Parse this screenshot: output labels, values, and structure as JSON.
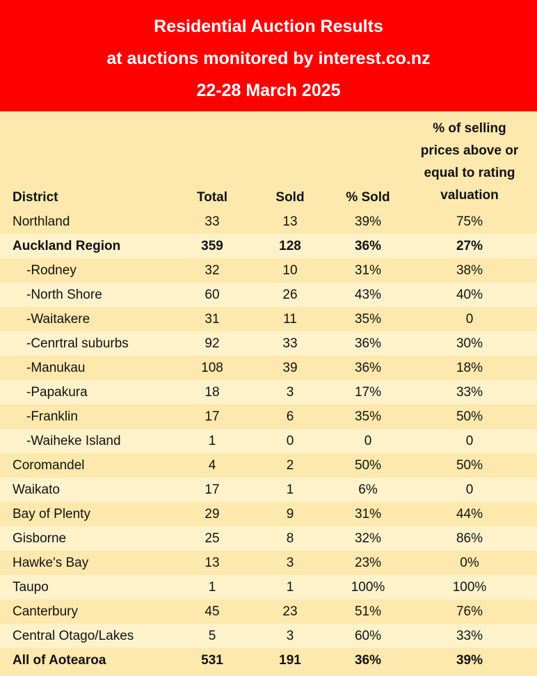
{
  "title": {
    "line1": "Residential Auction Results",
    "line2": "at auctions monitored by interest.co.nz",
    "line3": "22-28 March 2025"
  },
  "colors": {
    "banner": "#ff0000",
    "row_light": "#fef2cb",
    "row_tan": "#fde9ad"
  },
  "table": {
    "headers": {
      "district": "District",
      "total": "Total",
      "sold": "Sold",
      "pct_sold": "% Sold",
      "rating_line1": "% of selling",
      "rating_line2": "prices above or",
      "rating_line3": "equal to rating",
      "rating_line4": "valuation"
    },
    "rows": [
      {
        "district": "Northland",
        "total": "33",
        "sold": "13",
        "pct_sold": "39%",
        "rating": "75%",
        "bold": false,
        "indent": false
      },
      {
        "district": "Auckland Region",
        "total": "359",
        "sold": "128",
        "pct_sold": "36%",
        "rating": "27%",
        "bold": true,
        "indent": false
      },
      {
        "district": "-Rodney",
        "total": "32",
        "sold": "10",
        "pct_sold": "31%",
        "rating": "38%",
        "bold": false,
        "indent": true
      },
      {
        "district": "-North Shore",
        "total": "60",
        "sold": "26",
        "pct_sold": "43%",
        "rating": "40%",
        "bold": false,
        "indent": true
      },
      {
        "district": "-Waitakere",
        "total": "31",
        "sold": "11",
        "pct_sold": "35%",
        "rating": "0",
        "bold": false,
        "indent": true
      },
      {
        "district": "-Cenrtral suburbs",
        "total": "92",
        "sold": "33",
        "pct_sold": "36%",
        "rating": "30%",
        "bold": false,
        "indent": true
      },
      {
        "district": "-Manukau",
        "total": "108",
        "sold": "39",
        "pct_sold": "36%",
        "rating": "18%",
        "bold": false,
        "indent": true
      },
      {
        "district": "-Papakura",
        "total": "18",
        "sold": "3",
        "pct_sold": "17%",
        "rating": "33%",
        "bold": false,
        "indent": true
      },
      {
        "district": "-Franklin",
        "total": "17",
        "sold": "6",
        "pct_sold": "35%",
        "rating": "50%",
        "bold": false,
        "indent": true
      },
      {
        "district": "-Waiheke Island",
        "total": "1",
        "sold": "0",
        "pct_sold": "0",
        "rating": "0",
        "bold": false,
        "indent": true
      },
      {
        "district": "Coromandel",
        "total": "4",
        "sold": "2",
        "pct_sold": "50%",
        "rating": "50%",
        "bold": false,
        "indent": false
      },
      {
        "district": "Waikato",
        "total": "17",
        "sold": "1",
        "pct_sold": "6%",
        "rating": "0",
        "bold": false,
        "indent": false
      },
      {
        "district": "Bay of Plenty",
        "total": "29",
        "sold": "9",
        "pct_sold": "31%",
        "rating": "44%",
        "bold": false,
        "indent": false
      },
      {
        "district": "Gisborne",
        "total": "25",
        "sold": "8",
        "pct_sold": "32%",
        "rating": "86%",
        "bold": false,
        "indent": false
      },
      {
        "district": "Hawke's Bay",
        "total": "13",
        "sold": "3",
        "pct_sold": "23%",
        "rating": "0%",
        "bold": false,
        "indent": false
      },
      {
        "district": "Taupo",
        "total": "1",
        "sold": "1",
        "pct_sold": "100%",
        "rating": "100%",
        "bold": false,
        "indent": false
      },
      {
        "district": "Canterbury",
        "total": "45",
        "sold": "23",
        "pct_sold": "51%",
        "rating": "76%",
        "bold": false,
        "indent": false
      },
      {
        "district": "Central Otago/Lakes",
        "total": "5",
        "sold": "3",
        "pct_sold": "60%",
        "rating": "33%",
        "bold": false,
        "indent": false
      },
      {
        "district": "All of Aotearoa",
        "total": "531",
        "sold": "191",
        "pct_sold": "36%",
        "rating": "39%",
        "bold": true,
        "indent": false
      }
    ]
  }
}
